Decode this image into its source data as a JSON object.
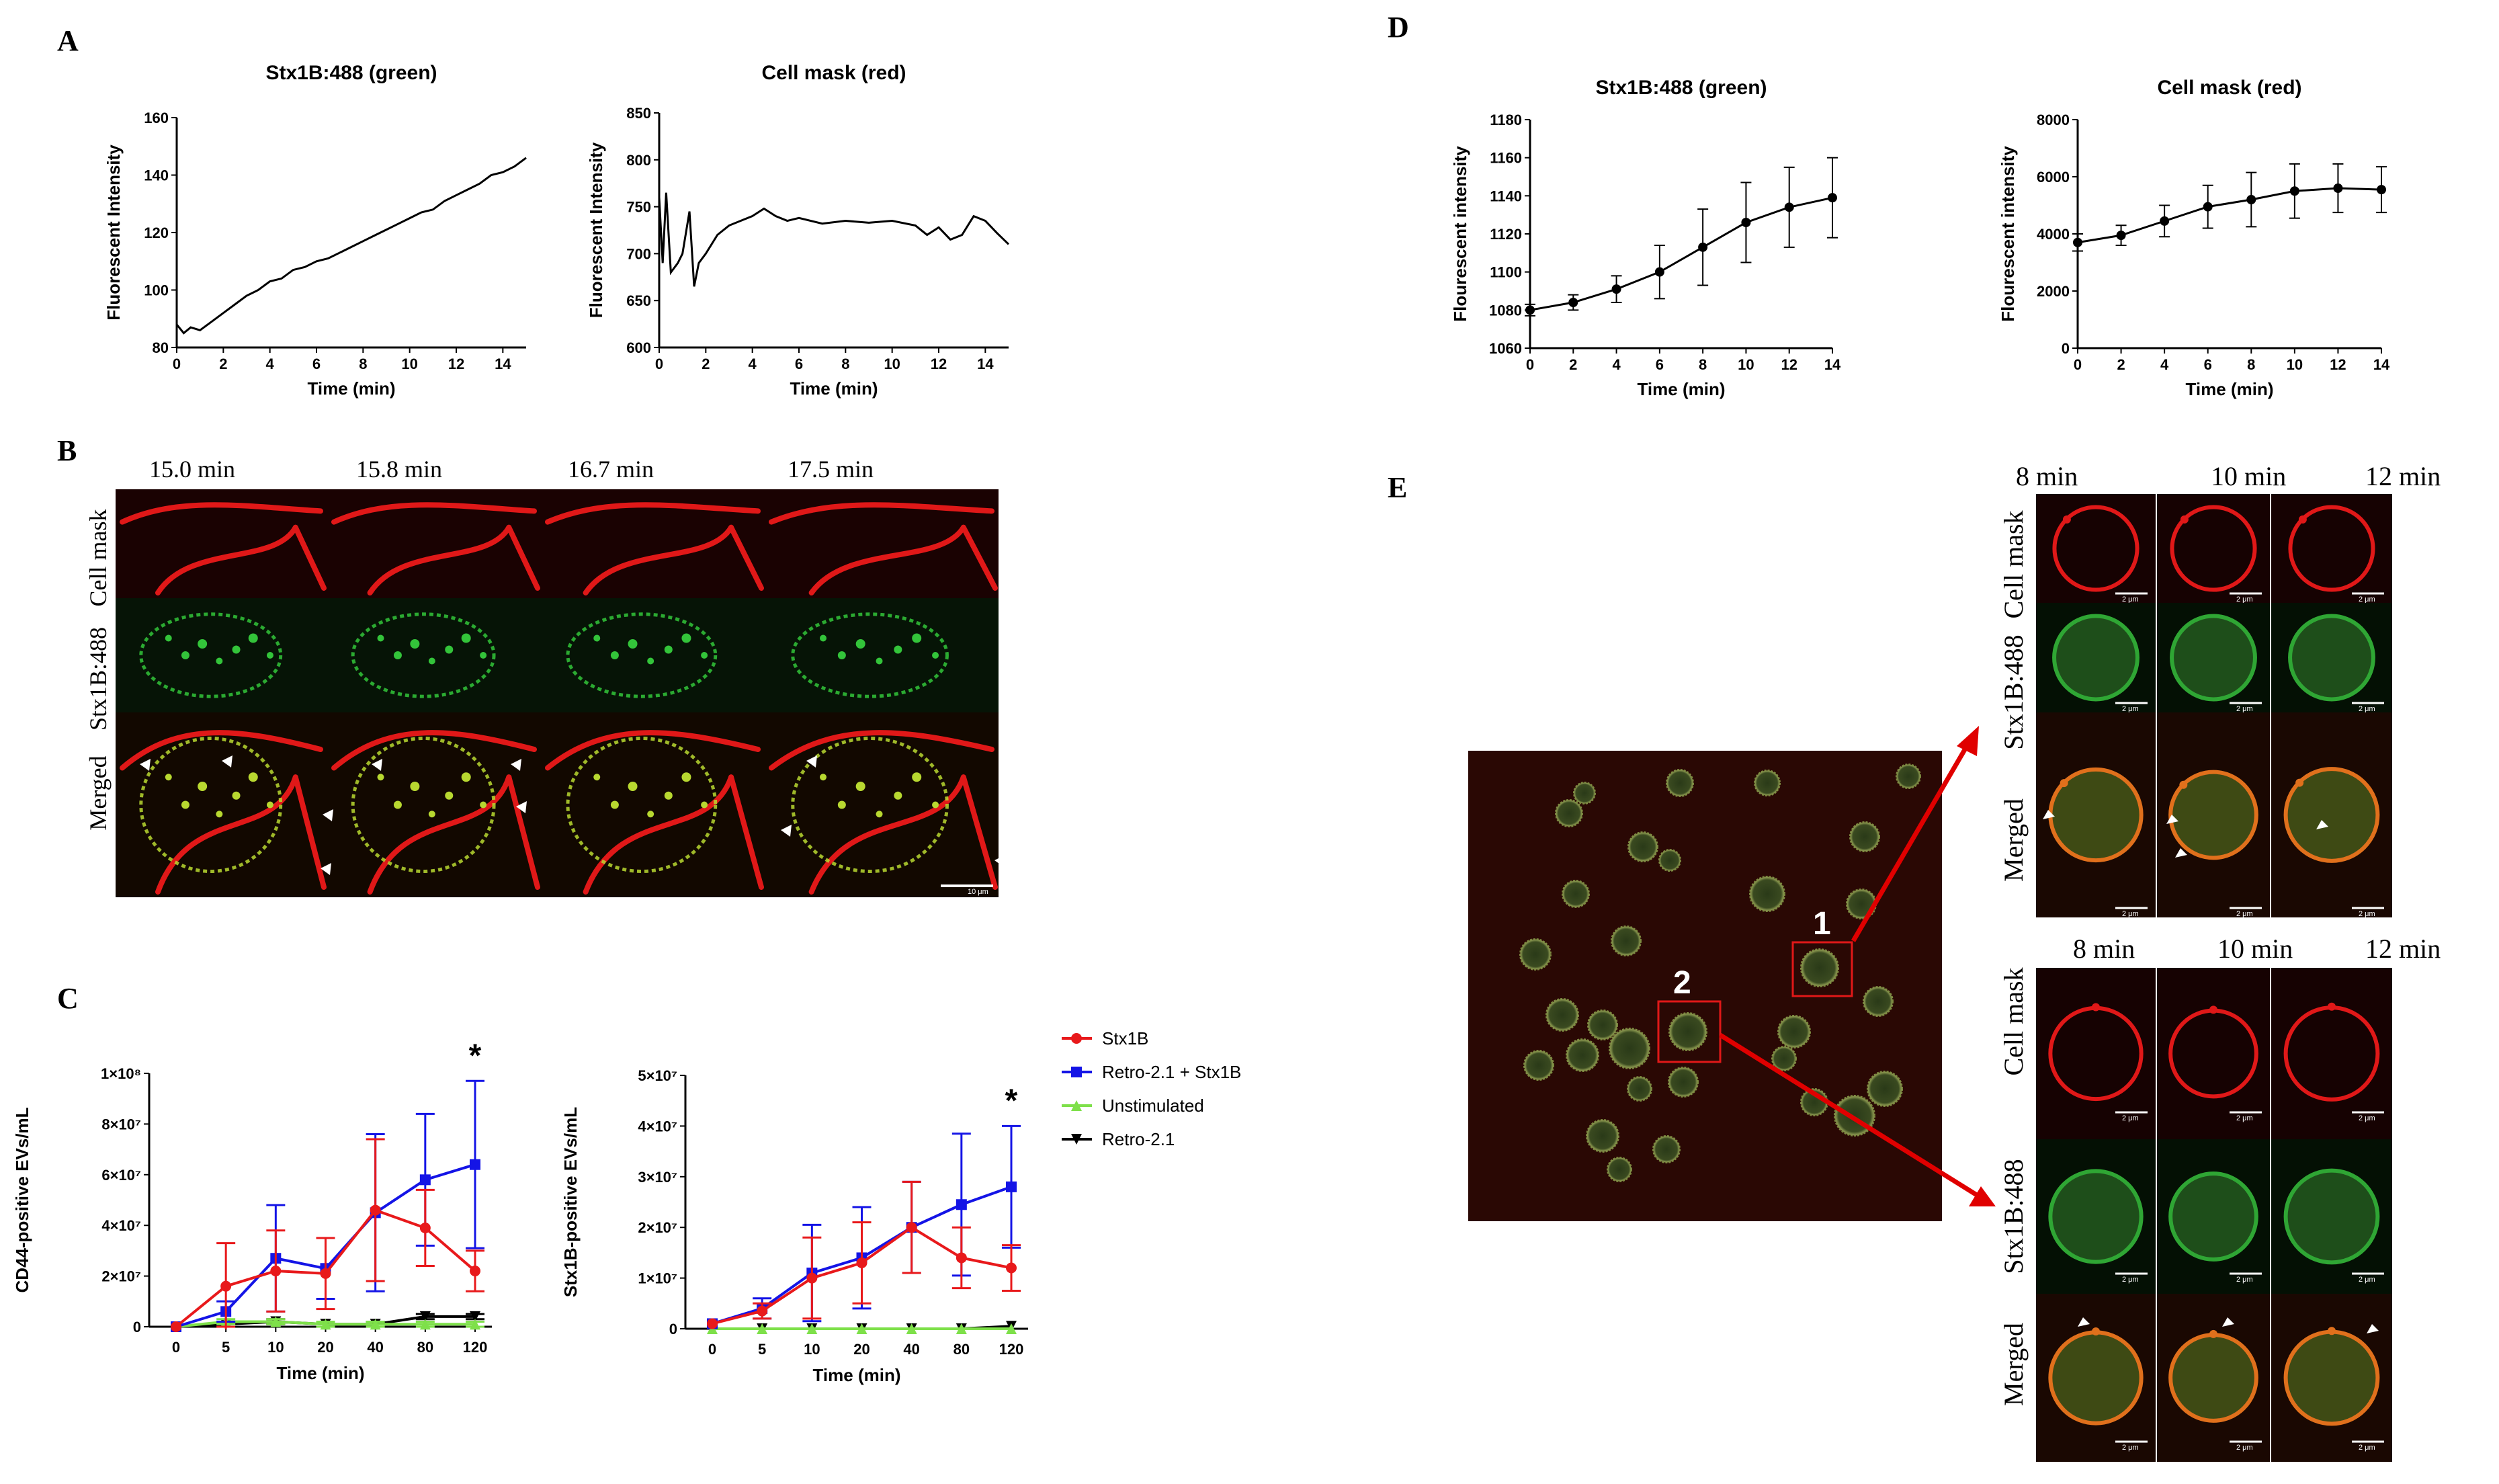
{
  "panels": {
    "A": "A",
    "B": "B",
    "C": "C",
    "D": "D",
    "E": "E"
  },
  "panel_b": {
    "times": [
      "15.0 min",
      "15.8 min",
      "16.7 min",
      "17.5 min"
    ],
    "rows": [
      "Cell mask",
      "Stx1B:488",
      "Merged"
    ],
    "scale_bar": "10 μm"
  },
  "panel_e": {
    "times_top": [
      "8 min",
      "10 min",
      "12 min"
    ],
    "times_bottom": [
      "8 min",
      "10 min",
      "12 min"
    ],
    "rows_top": [
      "Cell mask",
      "Stx1B:488",
      "Merged"
    ],
    "rows_bottom": [
      "Cell mask",
      "Stx1B:488",
      "Merged"
    ],
    "scale_bar": "2 μm",
    "box_labels": [
      "1",
      "2"
    ]
  },
  "colors": {
    "stx1b": "#e8191b",
    "retro_stx1b": "#1414e6",
    "unstimulated": "#7ee04a",
    "retro": "#000000",
    "cell_mask_red": "#e01818",
    "stx_green": "#33c43a"
  },
  "chart_data": [
    {
      "id": "A1",
      "type": "line",
      "title": "Stx1B:488 (green)",
      "xlabel": "Time (min)",
      "ylabel": "Fluorescent Intensity",
      "xlim": [
        0,
        15
      ],
      "ylim": [
        80,
        160
      ],
      "xticks": [
        0,
        2,
        4,
        6,
        8,
        10,
        12,
        14
      ],
      "yticks": [
        80,
        100,
        120,
        140,
        160
      ],
      "series": [
        {
          "x": [
            0,
            0.3,
            0.6,
            1,
            1.5,
            2,
            2.5,
            3,
            3.5,
            4,
            4.5,
            5,
            5.5,
            6,
            6.5,
            7,
            7.5,
            8,
            8.5,
            9,
            9.5,
            10,
            10.5,
            11,
            11.5,
            12,
            12.5,
            13,
            13.5,
            14,
            14.5,
            15
          ],
          "y": [
            88,
            85,
            87,
            86,
            89,
            92,
            95,
            98,
            100,
            103,
            104,
            107,
            108,
            110,
            111,
            113,
            115,
            117,
            119,
            121,
            123,
            125,
            127,
            128,
            131,
            133,
            135,
            137,
            140,
            141,
            143,
            146
          ]
        }
      ]
    },
    {
      "id": "A2",
      "type": "line",
      "title": "Cell mask (red)",
      "xlabel": "Time (min)",
      "ylabel": "Fluorescent Intensity",
      "xlim": [
        0,
        15
      ],
      "ylim": [
        600,
        850
      ],
      "xticks": [
        0,
        2,
        4,
        6,
        8,
        10,
        12,
        14
      ],
      "yticks": [
        600,
        650,
        700,
        750,
        800,
        850
      ],
      "series": [
        {
          "x": [
            0,
            0.15,
            0.3,
            0.5,
            0.8,
            1.0,
            1.3,
            1.5,
            1.7,
            2.0,
            2.5,
            3.0,
            3.5,
            4.0,
            4.5,
            5.0,
            5.5,
            6.0,
            7.0,
            8.0,
            9.0,
            10.0,
            11.0,
            11.5,
            12.0,
            12.5,
            13.0,
            13.5,
            14.0,
            14.5,
            15.0
          ],
          "y": [
            760,
            690,
            765,
            680,
            690,
            700,
            745,
            665,
            690,
            700,
            720,
            730,
            735,
            740,
            748,
            740,
            735,
            738,
            732,
            735,
            733,
            735,
            730,
            720,
            728,
            715,
            720,
            740,
            735,
            722,
            710
          ]
        }
      ]
    },
    {
      "id": "C1",
      "type": "line",
      "xlabel": "Time (min)",
      "ylabel": "CD44-positive EVs/mL",
      "categories": [
        "0",
        "5",
        "10",
        "20",
        "40",
        "80",
        "120"
      ],
      "ylim": [
        0,
        100000000
      ],
      "ytick_labels": [
        "0",
        "2×10⁷",
        "4×10⁷",
        "6×10⁷",
        "8×10⁷",
        "1×10⁸"
      ],
      "yticks": [
        0,
        20000000,
        40000000,
        60000000,
        80000000,
        100000000
      ],
      "annotation": "*",
      "series": [
        {
          "name": "Stx1B",
          "color": "#e8191b",
          "marker": "circle",
          "values": [
            0,
            16000000,
            22000000,
            21000000,
            46000000,
            39000000,
            22000000
          ],
          "err": [
            0,
            17000000,
            16000000,
            14000000,
            28000000,
            15000000,
            8000000
          ]
        },
        {
          "name": "Retro-2.1 + Stx1B",
          "color": "#1414e6",
          "marker": "square",
          "values": [
            0,
            6000000,
            27000000,
            23000000,
            45000000,
            58000000,
            64000000
          ],
          "err": [
            0,
            4000000,
            21000000,
            12000000,
            31000000,
            26000000,
            33000000
          ]
        },
        {
          "name": "Unstimulated",
          "color": "#7ee04a",
          "marker": "triangle-up",
          "values": [
            0,
            2000000,
            2000000,
            1000000,
            1000000,
            1000000,
            1000000
          ],
          "err": [
            0,
            1000000,
            1000000,
            1000000,
            1000000,
            1000000,
            1000000
          ]
        },
        {
          "name": "Retro-2.1",
          "color": "#000000",
          "marker": "triangle-down",
          "values": [
            0,
            1000000,
            2000000,
            1000000,
            1000000,
            4000000,
            4000000
          ],
          "err": [
            0,
            1000000,
            1000000,
            1000000,
            1000000,
            1000000,
            1000000
          ]
        }
      ]
    },
    {
      "id": "C2",
      "type": "line",
      "xlabel": "Time (min)",
      "ylabel": "Stx1B-positive EVs/mL",
      "categories": [
        "0",
        "5",
        "10",
        "20",
        "40",
        "80",
        "120"
      ],
      "ylim": [
        0,
        50000000
      ],
      "ytick_labels": [
        "0",
        "1×10⁷",
        "2×10⁷",
        "3×10⁷",
        "4×10⁷",
        "5×10⁷"
      ],
      "yticks": [
        0,
        10000000,
        20000000,
        30000000,
        40000000,
        50000000
      ],
      "annotation": "*",
      "series": [
        {
          "name": "Stx1B",
          "color": "#e8191b",
          "marker": "circle",
          "values": [
            1000000,
            3500000,
            10000000,
            13000000,
            20000000,
            14000000,
            12000000
          ],
          "err": [
            0,
            1500000,
            8000000,
            8000000,
            9000000,
            6000000,
            4500000
          ]
        },
        {
          "name": "Retro-2.1 + Stx1B",
          "color": "#1414e6",
          "marker": "square",
          "values": [
            1000000,
            4000000,
            11000000,
            14000000,
            20000000,
            24500000,
            28000000
          ],
          "err": [
            0,
            2000000,
            9500000,
            10000000,
            9000000,
            14000000,
            12000000
          ]
        },
        {
          "name": "Unstimulated",
          "color": "#7ee04a",
          "marker": "triangle-up",
          "values": [
            0,
            0,
            0,
            0,
            0,
            0,
            0
          ],
          "err": [
            0,
            0,
            0,
            0,
            0,
            0,
            0
          ]
        },
        {
          "name": "Retro-2.1",
          "color": "#000000",
          "marker": "triangle-down",
          "values": [
            0,
            0,
            0,
            0,
            0,
            0,
            500000
          ],
          "err": [
            0,
            0,
            0,
            0,
            0,
            0,
            0
          ]
        }
      ]
    },
    {
      "id": "D1",
      "type": "line",
      "title": "Stx1B:488 (green)",
      "xlabel": "Time (min)",
      "ylabel": "Flourescent intensity",
      "xlim": [
        0,
        14
      ],
      "ylim": [
        1060,
        1180
      ],
      "xticks": [
        0,
        2,
        4,
        6,
        8,
        10,
        12,
        14
      ],
      "yticks": [
        1060,
        1080,
        1100,
        1120,
        1140,
        1160,
        1180
      ],
      "series": [
        {
          "x": [
            0,
            2,
            4,
            6,
            8,
            10,
            12,
            14
          ],
          "y": [
            1080,
            1084,
            1091,
            1100,
            1113,
            1126,
            1134,
            1139
          ],
          "err": [
            3,
            4,
            7,
            14,
            20,
            21,
            21,
            21
          ]
        }
      ]
    },
    {
      "id": "D2",
      "type": "line",
      "title": "Cell mask (red)",
      "xlabel": "Time (min)",
      "ylabel": "Flourescent intensity",
      "xlim": [
        0,
        14
      ],
      "ylim": [
        0,
        8000
      ],
      "xticks": [
        0,
        2,
        4,
        6,
        8,
        10,
        12,
        14
      ],
      "yticks": [
        0,
        2000,
        4000,
        6000,
        8000
      ],
      "series": [
        {
          "x": [
            0,
            2,
            4,
            6,
            8,
            10,
            12,
            14
          ],
          "y": [
            3700,
            3950,
            4450,
            4950,
            5200,
            5500,
            5600,
            5550
          ],
          "err": [
            300,
            350,
            550,
            750,
            950,
            950,
            850,
            800
          ]
        }
      ]
    }
  ]
}
